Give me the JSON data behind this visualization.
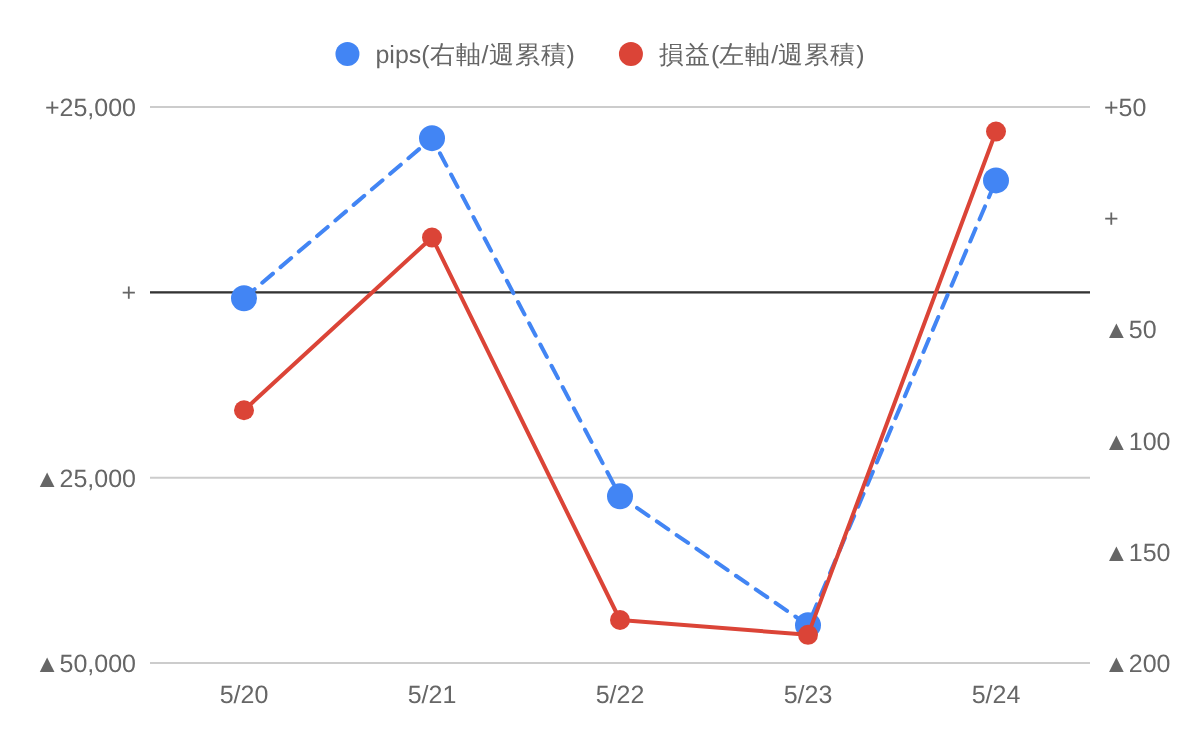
{
  "chart_data": {
    "type": "line",
    "categories": [
      "5/20",
      "5/21",
      "5/22",
      "5/23",
      "5/24"
    ],
    "series": [
      {
        "name": "pips(右軸/週累積)",
        "color": "#4285f4",
        "axis": "y2",
        "line_style": "dashed",
        "values": [
          -36,
          36,
          -125,
          -183,
          17
        ]
      },
      {
        "name": "損益(左軸/週累積)",
        "color": "#db4437",
        "line_style": "solid",
        "values": [
          -15900,
          7400,
          -44200,
          -46200,
          21700
        ]
      }
    ],
    "ylim": [
      -50000,
      25000
    ],
    "yticks": [
      {
        "value": 25000,
        "label": "+25,000"
      },
      {
        "value": 0,
        "label": "+"
      },
      {
        "value": -25000,
        "label": "▲25,000"
      },
      {
        "value": -50000,
        "label": "▲50,000"
      }
    ],
    "y2lim": [
      -200,
      50
    ],
    "y2ticks": [
      {
        "value": 50,
        "label": "+50"
      },
      {
        "value": 0,
        "label": "+"
      },
      {
        "value": -50,
        "label": "▲50"
      },
      {
        "value": -100,
        "label": "▲100"
      },
      {
        "value": -150,
        "label": "▲150"
      },
      {
        "value": -200,
        "label": "▲200"
      }
    ],
    "ref_lines": [
      {
        "axis": "y",
        "value": 0,
        "color": "#333333"
      }
    ],
    "grid": "y",
    "legend": "top",
    "marker": "circle"
  }
}
